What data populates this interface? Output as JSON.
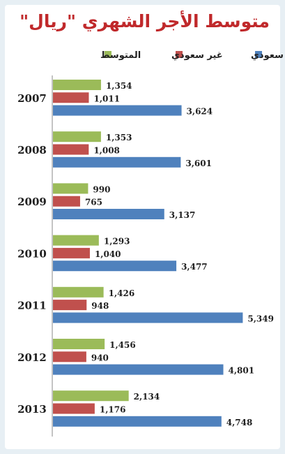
{
  "title": "متوسط الأجر الشهري \"ريال\"",
  "chart_data": {
    "type": "bar",
    "orientation": "horizontal",
    "title": "متوسط الأجر الشهري \"ريال\"",
    "categories": [
      "2007",
      "2008",
      "2009",
      "2010",
      "2011",
      "2012",
      "2013"
    ],
    "series": [
      {
        "name": "المتوسط",
        "color": "#9bbb59",
        "values": [
          1354,
          1353,
          990,
          1293,
          1426,
          1456,
          2134
        ],
        "labels": [
          "1,354",
          "1,353",
          "990",
          "1,293",
          "1,426",
          "1,456",
          "2,134"
        ]
      },
      {
        "name": "غير سعودي",
        "color": "#c0504d",
        "values": [
          1011,
          1008,
          765,
          1040,
          948,
          940,
          1176
        ],
        "labels": [
          "1,011",
          "1,008",
          "765",
          "1,040",
          "948",
          "940",
          "1,176"
        ]
      },
      {
        "name": "سعودي",
        "color": "#4f81bd",
        "values": [
          3624,
          3601,
          3137,
          3477,
          5349,
          4801,
          4748
        ],
        "labels": [
          "3,624",
          "3,601",
          "3,137",
          "3,477",
          "5,349",
          "4,801",
          "4,748"
        ]
      }
    ],
    "xlim": [
      0,
      5400
    ],
    "legend_position": "top",
    "grid": false
  }
}
